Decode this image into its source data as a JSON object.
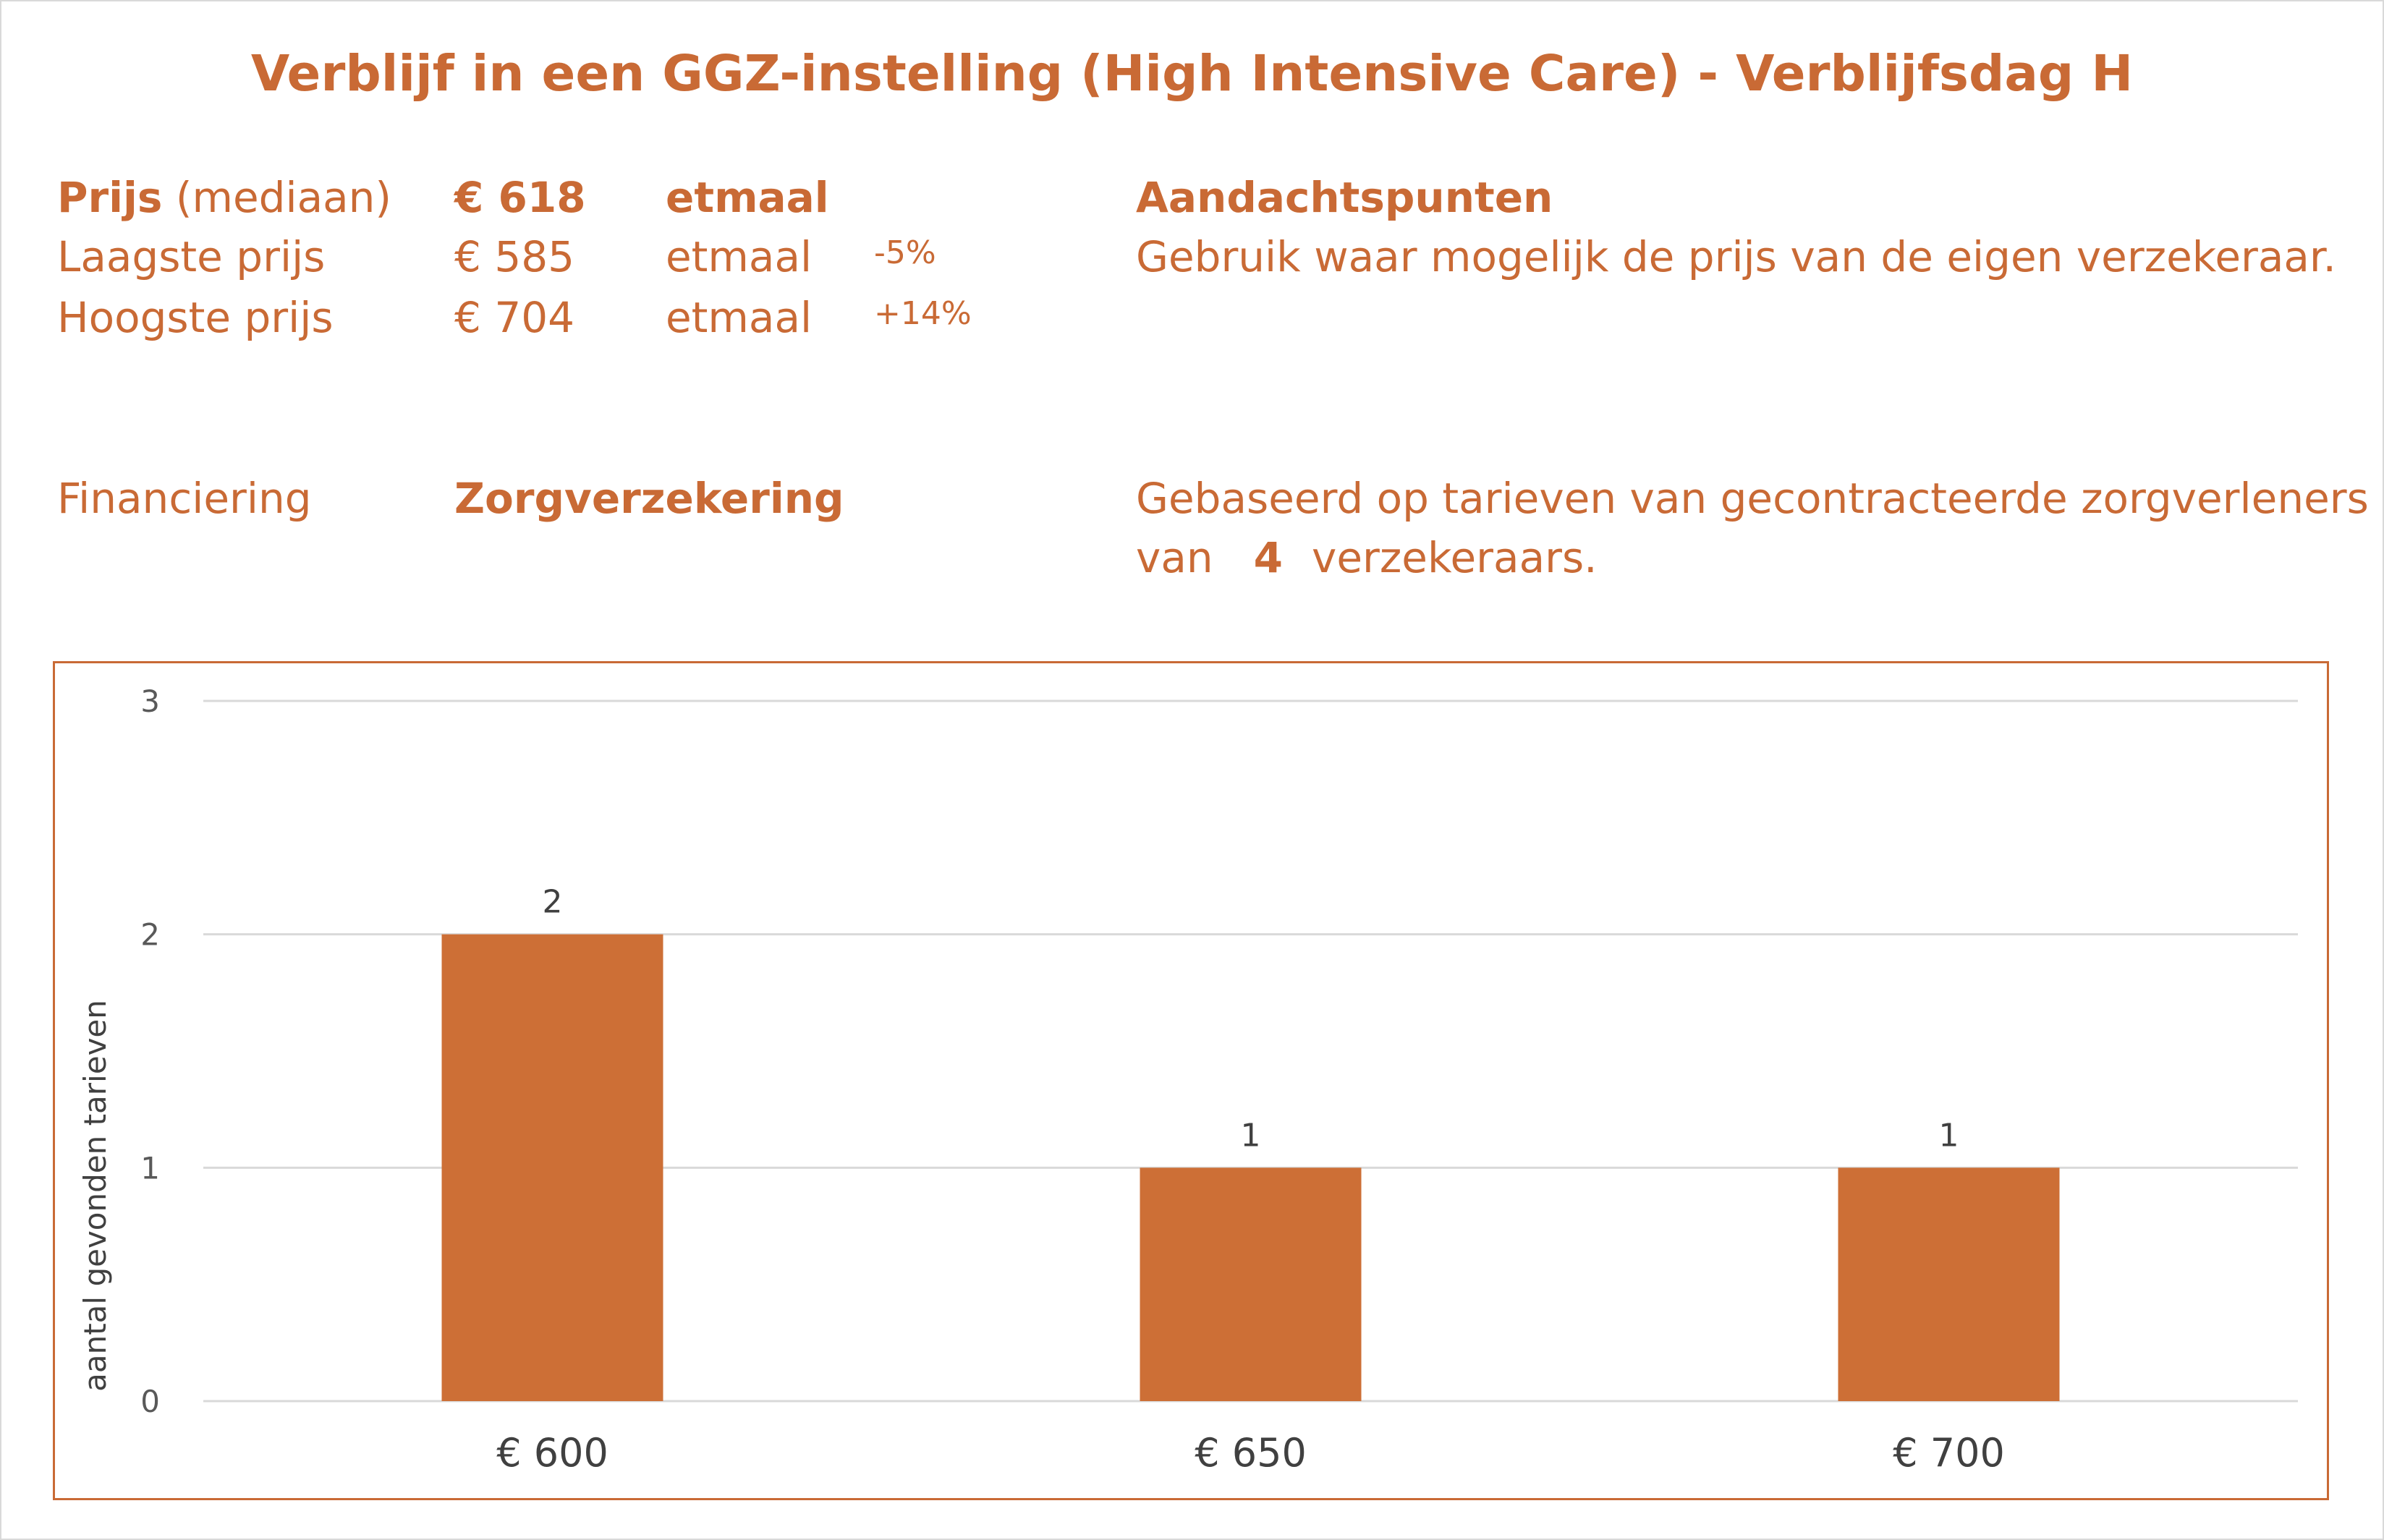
{
  "title": "Verblijf in een GGZ-instelling (High Intensive Care) - Verblijfsdag H",
  "prices": {
    "median_label_bold": "Prijs",
    "median_label_rest": "(mediaan)",
    "median_value": "€ 618",
    "median_unit": "etmaal",
    "low_label": "Laagste prijs",
    "low_value": "€ 585",
    "low_unit": "etmaal",
    "low_pct": "-5%",
    "high_label": "Hoogste prijs",
    "high_value": "€ 704",
    "high_unit": "etmaal",
    "high_pct": "+14%"
  },
  "attention": {
    "heading": "Aandachtspunten",
    "text": "Gebruik waar mogelijk de prijs van de eigen verzekeraar."
  },
  "financing": {
    "label": "Financiering",
    "value": "Zorgverzekering"
  },
  "basis": {
    "line1": "Gebaseerd op tarieven van gecontracteerde zorgverleners",
    "prefix": "van",
    "count": "4",
    "suffix": "verzekeraars."
  },
  "colors": {
    "accent": "#c96a35",
    "bar": "#cd6f36",
    "grid": "#d9d9d9"
  },
  "chart_data": {
    "type": "bar",
    "categories": [
      "€ 600",
      "€ 650",
      "€ 700"
    ],
    "values": [
      2,
      1,
      1
    ],
    "data_labels": [
      "2",
      "1",
      "1"
    ],
    "title": "",
    "xlabel": "",
    "ylabel": "aantal gevonden tarieven",
    "ylim": [
      0,
      3
    ],
    "yticks": [
      "0",
      "1",
      "2",
      "3"
    ],
    "grid": true,
    "legend": "none"
  }
}
